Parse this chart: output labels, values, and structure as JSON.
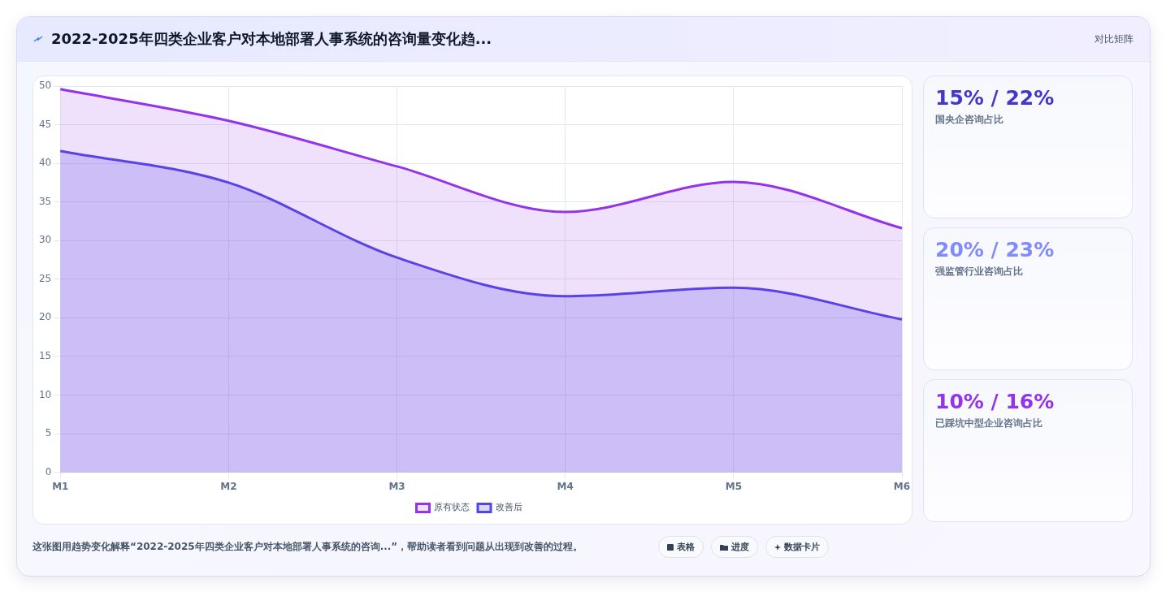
{
  "chart_data": [
    {
      "type": "area",
      "title": "2022-2025年四类企业客户对本地部署人事系统的咨询量变化趋...",
      "categories": [
        "M1",
        "M2",
        "M3",
        "M4",
        "M5",
        "M6"
      ],
      "series": [
        {
          "name": "原有状态",
          "color": "#9333ea",
          "values": [
            49.6,
            45.5,
            39.6,
            33.7,
            37.6,
            31.6
          ]
        },
        {
          "name": "改善后",
          "color": "#4f46e5",
          "values": [
            41.6,
            37.5,
            27.8,
            22.8,
            23.9,
            19.8
          ]
        }
      ],
      "ylim": [
        0,
        50
      ],
      "yticks": [
        0,
        5,
        10,
        15,
        20,
        25,
        30,
        35,
        40,
        45,
        50
      ],
      "grid": true,
      "legend": "bottom",
      "marker": "none",
      "line_style": "solid",
      "annotations": [
        "对比矩阵",
        "这张图用趋势变化解释“2022-2025年四类企业客户对本地部署人事系统的咨询...”，帮助读者看到问题从出现到改善的过程。",
        "表格",
        "进度",
        "数据卡片"
      ]
    },
    {
      "type": "other",
      "annotations": [
        "15% / 22%",
        "国央企咨询占比",
        "20% / 23%",
        "强监管行业咨询占比",
        "10% / 16%",
        "已踩坑中型企业咨询占比"
      ]
    }
  ]
}
